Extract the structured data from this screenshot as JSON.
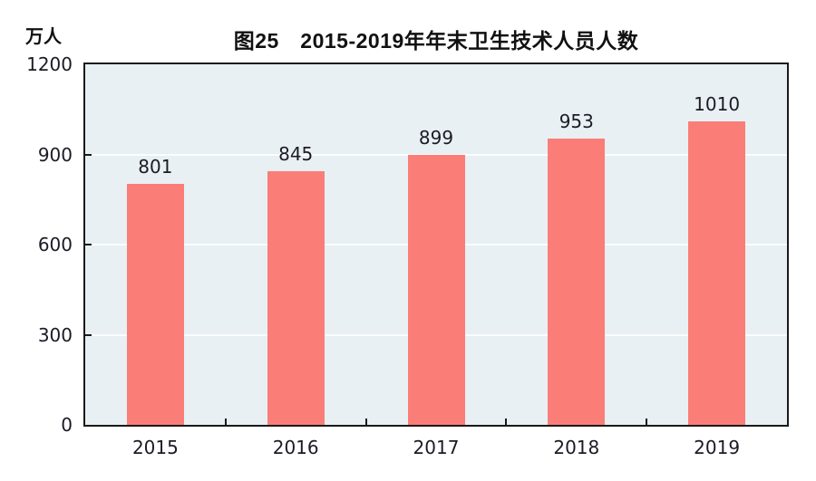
{
  "title": "图25　2015-2019年年末卫生技术人员人数",
  "unit_label": "万人",
  "colors": {
    "bar": "#fb7d78",
    "plot_bg": "#e9f0f3",
    "gridline": "#fbfdfe",
    "axis": "#1a1a1a",
    "text": "#1b1b26",
    "page_bg": "#ffffff"
  },
  "chart_data": {
    "type": "bar",
    "title": "图25　2015-2019年年末卫生技术人员人数",
    "categories": [
      "2015",
      "2016",
      "2017",
      "2018",
      "2019"
    ],
    "values": [
      801,
      845,
      899,
      953,
      1010
    ],
    "xlabel": "",
    "ylabel": "万人",
    "ylim": [
      0,
      1200
    ],
    "yticks": [
      0,
      300,
      600,
      900,
      1200
    ],
    "gridline_values": [
      300,
      600,
      900
    ],
    "grid": true,
    "legend": false,
    "bar_labels": true
  }
}
